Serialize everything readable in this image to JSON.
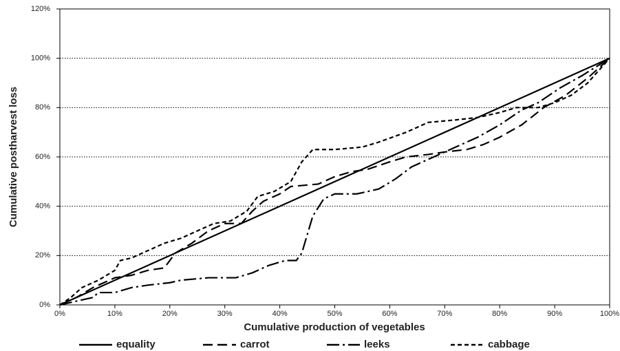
{
  "chart_data": {
    "type": "line",
    "xlabel": "Cumulative production of vegetables",
    "ylabel": "Cumulative postharvest loss",
    "xlim": [
      0,
      100
    ],
    "ylim": [
      0,
      120
    ],
    "xticks": [
      {
        "value": 0,
        "label": "0%"
      },
      {
        "value": 10,
        "label": "10%"
      },
      {
        "value": 20,
        "label": "20%"
      },
      {
        "value": 30,
        "label": "30%"
      },
      {
        "value": 40,
        "label": "40%"
      },
      {
        "value": 50,
        "label": "50%"
      },
      {
        "value": 60,
        "label": "60%"
      },
      {
        "value": 70,
        "label": "70%"
      },
      {
        "value": 80,
        "label": "80%"
      },
      {
        "value": 90,
        "label": "90%"
      },
      {
        "value": 100,
        "label": "100%"
      }
    ],
    "yticks": [
      {
        "value": 0,
        "label": "0%"
      },
      {
        "value": 20,
        "label": "20%"
      },
      {
        "value": 40,
        "label": "40%"
      },
      {
        "value": 60,
        "label": "60%"
      },
      {
        "value": 80,
        "label": "80%"
      },
      {
        "value": 100,
        "label": "100%"
      },
      {
        "value": 120,
        "label": "120%"
      }
    ],
    "grid": true,
    "legend": "bottom",
    "series": [
      {
        "name": "equality",
        "color": "#000000",
        "dash": "none",
        "x": [
          0,
          100
        ],
        "values": [
          0,
          100
        ]
      },
      {
        "name": "carrot",
        "color": "#000000",
        "dash": "14,7",
        "x": [
          0,
          3,
          6,
          10,
          13,
          16,
          19,
          21,
          24,
          27,
          30,
          33,
          35,
          37,
          40,
          42,
          47,
          50,
          53,
          56,
          60,
          63,
          67,
          70,
          74,
          77,
          80,
          84,
          88,
          92,
          96,
          100
        ],
        "values": [
          0,
          3,
          7,
          11,
          12,
          14,
          15,
          21,
          25,
          30,
          33,
          33,
          38,
          42,
          45,
          48,
          49,
          52,
          54,
          55,
          58,
          60,
          61,
          62,
          63,
          65,
          68,
          73,
          80,
          85,
          92,
          100
        ]
      },
      {
        "name": "leeks",
        "color": "#000000",
        "dash": "18,5,3,5",
        "x": [
          0,
          4,
          6,
          7,
          10,
          13,
          16,
          20,
          22,
          27,
          32,
          35,
          38,
          41,
          43,
          44,
          46,
          48,
          50,
          54,
          58,
          61,
          64,
          68,
          72,
          76,
          80,
          84,
          87,
          91,
          95,
          100
        ],
        "values": [
          0,
          2,
          3,
          5,
          5,
          7,
          8,
          9,
          10,
          11,
          11,
          13,
          16,
          18,
          18,
          21,
          36,
          43,
          45,
          45,
          47,
          51,
          56,
          60,
          64,
          68,
          73,
          79,
          82,
          88,
          93,
          100
        ]
      },
      {
        "name": "cabbage",
        "color": "#000000",
        "dash": "6,4",
        "x": [
          0,
          2,
          4,
          7,
          10,
          11,
          13,
          16,
          19,
          22,
          25,
          28,
          31,
          34,
          36,
          39,
          42,
          44,
          46,
          50,
          55,
          58,
          63,
          67,
          72,
          76,
          80,
          83,
          87,
          90,
          93,
          96,
          100
        ],
        "values": [
          0,
          3,
          7,
          10,
          14,
          18,
          19,
          22,
          25,
          27,
          30,
          33,
          34,
          38,
          44,
          46,
          50,
          58,
          63,
          63,
          64,
          66,
          70,
          74,
          75,
          76,
          78,
          80,
          80,
          82,
          85,
          90,
          100
        ]
      }
    ]
  }
}
